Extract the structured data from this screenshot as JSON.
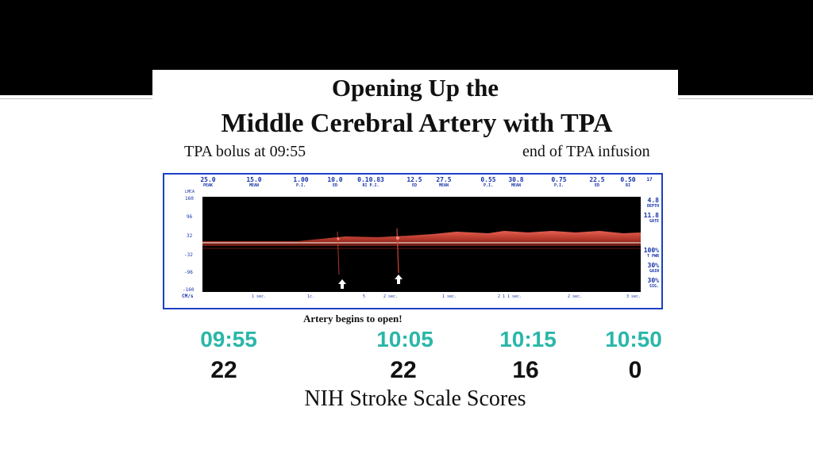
{
  "slide": {
    "title_line1": "Opening Up the",
    "title_line2": "Middle Cerebral Artery with TPA",
    "sub_left": "TPA bolus at 09:55",
    "sub_right": "end of TPA infusion",
    "caption": "Artery begins to open!",
    "footer": "NIH Stroke Scale Scores"
  },
  "doppler": {
    "headers": [
      {
        "value": "25.0",
        "label": "PEAK"
      },
      {
        "value": "15.0",
        "label": "MEAN"
      },
      {
        "value": "1.00",
        "label": "P.I."
      },
      {
        "value": "10.0",
        "label": "ED"
      },
      {
        "value": "0.10.83",
        "label": "RI P.I."
      },
      {
        "value": "12.5",
        "label": "ED"
      },
      {
        "value": "27.5",
        "label": "MEAN"
      },
      {
        "value": "0.55",
        "label": "P.I."
      },
      {
        "value": "30.8",
        "label": "MEAN"
      },
      {
        "value": "0.75",
        "label": "P.I."
      },
      {
        "value": "22.5",
        "label": "ED"
      },
      {
        "value": "0.50",
        "label": "RI"
      }
    ],
    "corner": "17",
    "vessel": "LMCA",
    "side_params": [
      {
        "value": "4.8",
        "label": "DEPTH"
      },
      {
        "value": "11.8",
        "label": "GATE"
      },
      {
        "value": "100%",
        "label": "T PWR"
      },
      {
        "value": "30%",
        "label": "GAIN"
      },
      {
        "value": "30%",
        "label": "SIG."
      }
    ],
    "y_ticks": [
      "160",
      "96",
      "32",
      "-32",
      "-96",
      "-160"
    ],
    "y_unit": "CM/s",
    "x_ticks": [
      "1 sec.",
      "1c.",
      "5",
      "2 sec.",
      "1 sec.",
      "2 1",
      "1 sec.",
      "2 sec.",
      "3 sec."
    ]
  },
  "timeline": [
    {
      "time": "09:55",
      "score": "22"
    },
    {
      "time": "10:05",
      "score": "22"
    },
    {
      "time": "10:15",
      "score": "16"
    },
    {
      "time": "10:50",
      "score": "0"
    }
  ],
  "colors": {
    "time_accent": "#2ab7a9",
    "doppler_border": "#1b3fc6",
    "doppler_signal": "#c0392b"
  }
}
